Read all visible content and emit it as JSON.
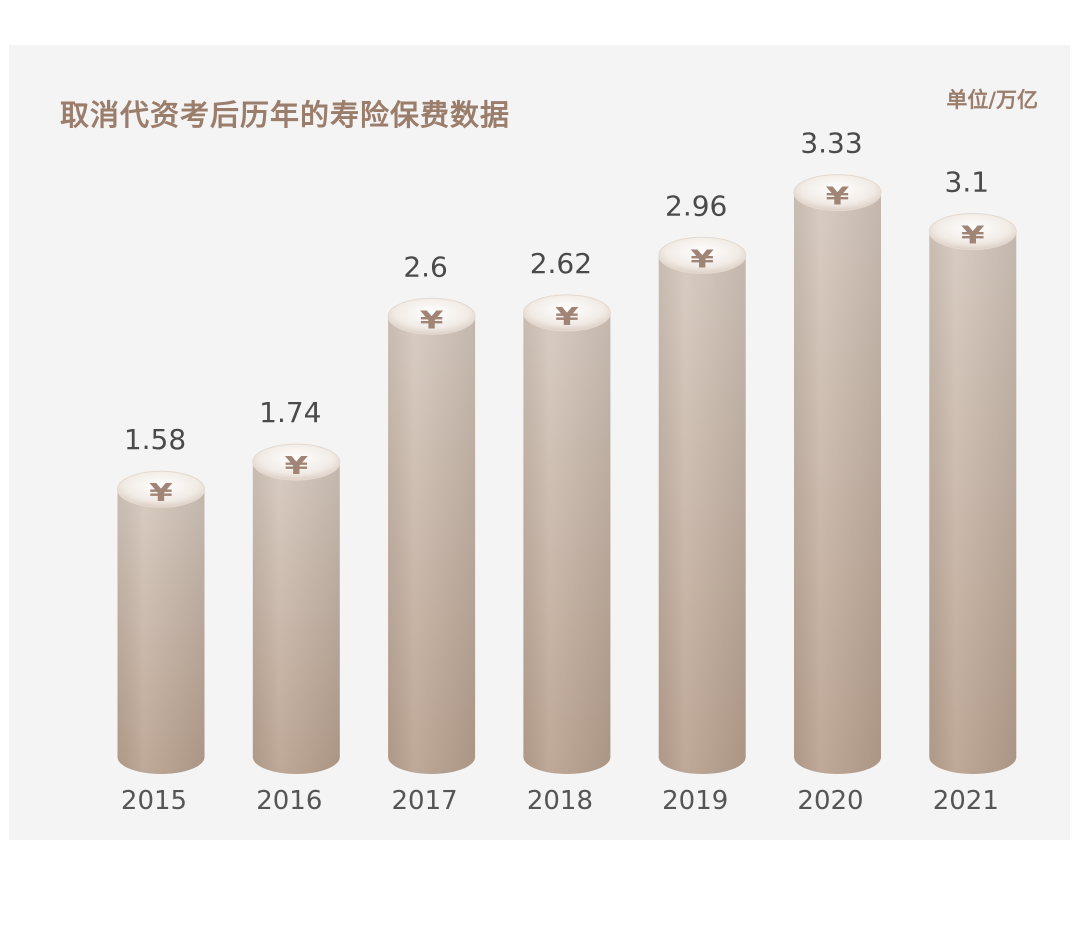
{
  "title": "取消代资考后历年的寿险保费数据",
  "unit": "单位/万亿",
  "icon": "yen-coin-icon",
  "colors": {
    "title": "#9b7d6b",
    "bar_top": "#d3c5ba",
    "bar_bottom": "#bba392",
    "panel": "#f4f4f4"
  },
  "chart_data": {
    "type": "bar",
    "title": "取消代资考后历年的寿险保费数据",
    "unit": "单位/万亿",
    "categories": [
      "2015",
      "2016",
      "2017",
      "2018",
      "2019",
      "2020",
      "2021"
    ],
    "values": [
      1.58,
      1.74,
      2.6,
      2.62,
      2.96,
      3.33,
      3.1
    ],
    "value_labels": [
      "1.58",
      "1.74",
      "2.6",
      "2.62",
      "2.96",
      "3.33",
      "3.1"
    ],
    "grid": false,
    "legend": "none",
    "style": "cylinder"
  }
}
